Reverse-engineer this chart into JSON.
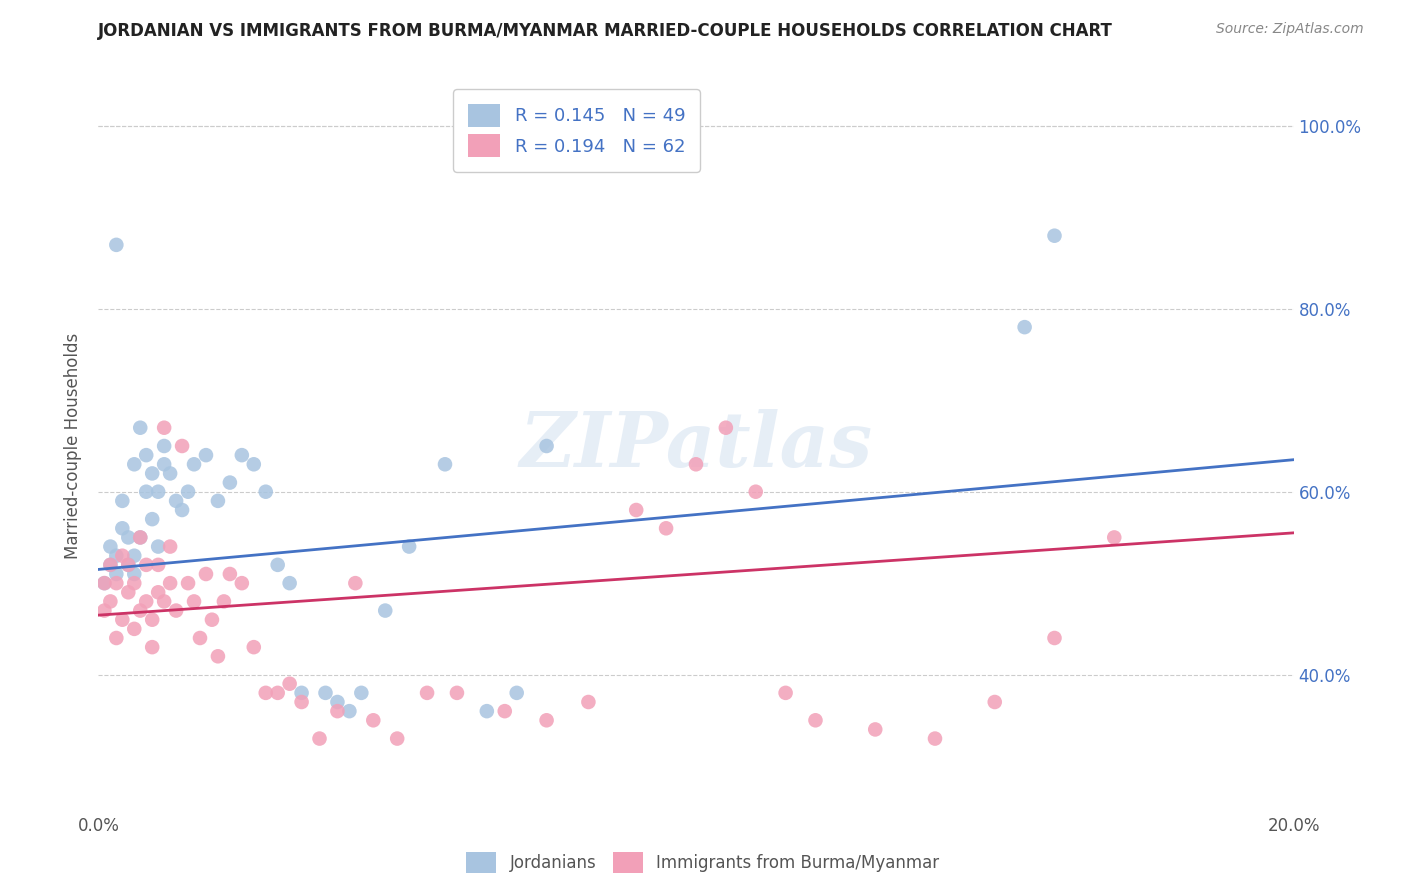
{
  "title": "JORDANIAN VS IMMIGRANTS FROM BURMA/MYANMAR MARRIED-COUPLE HOUSEHOLDS CORRELATION CHART",
  "source": "Source: ZipAtlas.com",
  "ylabel": "Married-couple Households",
  "xlim": [
    0.0,
    0.2
  ],
  "ylim": [
    0.25,
    1.05
  ],
  "blue_R": 0.145,
  "blue_N": 49,
  "pink_R": 0.194,
  "pink_N": 62,
  "blue_color": "#a8c4e0",
  "pink_color": "#f2a0b8",
  "blue_line_color": "#4472c4",
  "pink_line_color": "#cc3366",
  "legend_label_blue": "Jordanians",
  "legend_label_pink": "Immigrants from Burma/Myanmar",
  "watermark": "ZIPatlas",
  "background_color": "#ffffff",
  "blue_x": [
    0.001,
    0.002,
    0.002,
    0.003,
    0.003,
    0.004,
    0.004,
    0.005,
    0.005,
    0.006,
    0.006,
    0.006,
    0.007,
    0.007,
    0.008,
    0.008,
    0.009,
    0.009,
    0.01,
    0.01,
    0.011,
    0.011,
    0.012,
    0.013,
    0.014,
    0.015,
    0.016,
    0.018,
    0.02,
    0.022,
    0.024,
    0.026,
    0.028,
    0.03,
    0.032,
    0.034,
    0.038,
    0.04,
    0.042,
    0.044,
    0.048,
    0.052,
    0.058,
    0.065,
    0.07,
    0.075,
    0.155,
    0.16,
    0.003
  ],
  "blue_y": [
    0.5,
    0.52,
    0.54,
    0.51,
    0.53,
    0.56,
    0.59,
    0.52,
    0.55,
    0.51,
    0.53,
    0.63,
    0.67,
    0.55,
    0.6,
    0.64,
    0.57,
    0.62,
    0.54,
    0.6,
    0.63,
    0.65,
    0.62,
    0.59,
    0.58,
    0.6,
    0.63,
    0.64,
    0.59,
    0.61,
    0.64,
    0.63,
    0.6,
    0.52,
    0.5,
    0.38,
    0.38,
    0.37,
    0.36,
    0.38,
    0.47,
    0.54,
    0.63,
    0.36,
    0.38,
    0.65,
    0.78,
    0.88,
    0.87
  ],
  "pink_x": [
    0.001,
    0.001,
    0.002,
    0.002,
    0.003,
    0.003,
    0.004,
    0.004,
    0.005,
    0.005,
    0.006,
    0.006,
    0.007,
    0.007,
    0.008,
    0.008,
    0.009,
    0.009,
    0.01,
    0.01,
    0.011,
    0.011,
    0.012,
    0.012,
    0.013,
    0.014,
    0.015,
    0.016,
    0.017,
    0.018,
    0.019,
    0.02,
    0.021,
    0.022,
    0.024,
    0.026,
    0.028,
    0.03,
    0.032,
    0.034,
    0.037,
    0.04,
    0.043,
    0.046,
    0.05,
    0.055,
    0.06,
    0.068,
    0.075,
    0.082,
    0.09,
    0.095,
    0.1,
    0.105,
    0.11,
    0.115,
    0.12,
    0.13,
    0.14,
    0.15,
    0.16,
    0.17
  ],
  "pink_y": [
    0.5,
    0.47,
    0.48,
    0.52,
    0.44,
    0.5,
    0.46,
    0.53,
    0.49,
    0.52,
    0.45,
    0.5,
    0.47,
    0.55,
    0.48,
    0.52,
    0.46,
    0.43,
    0.49,
    0.52,
    0.48,
    0.67,
    0.5,
    0.54,
    0.47,
    0.65,
    0.5,
    0.48,
    0.44,
    0.51,
    0.46,
    0.42,
    0.48,
    0.51,
    0.5,
    0.43,
    0.38,
    0.38,
    0.39,
    0.37,
    0.33,
    0.36,
    0.5,
    0.35,
    0.33,
    0.38,
    0.38,
    0.36,
    0.35,
    0.37,
    0.58,
    0.56,
    0.63,
    0.67,
    0.6,
    0.38,
    0.35,
    0.34,
    0.33,
    0.37,
    0.44,
    0.55
  ]
}
